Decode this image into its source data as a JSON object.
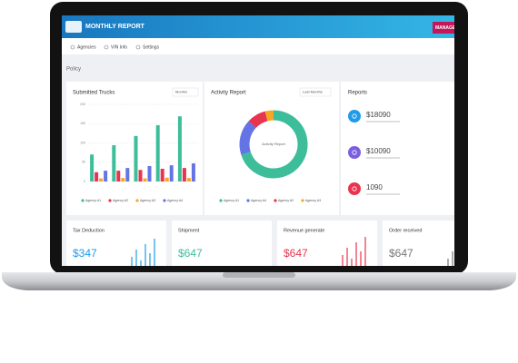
{
  "header": {
    "title": "MONTHLY REPORT",
    "button": "MANAGER"
  },
  "nav": [
    "Agencies",
    "VIN Info",
    "Settings"
  ],
  "breadcrumb": "Policy",
  "chart_data": [
    {
      "type": "bar",
      "title": "Submitted Trucks",
      "dropdown": "Months",
      "categories": [
        null,
        null,
        null,
        null,
        null
      ],
      "ylim": [
        0,
        200
      ],
      "yticks": [
        0,
        50,
        100,
        150,
        200
      ],
      "grid": true,
      "series": [
        {
          "name": "Agency A1",
          "color": "#3dbd9a",
          "values": [
            70,
            94,
            118,
            146,
            169
          ]
        },
        {
          "name": "Agency A2",
          "color": "#e8344e",
          "values": [
            24,
            28,
            30,
            33,
            35
          ]
        },
        {
          "name": "Agency A3",
          "color": "#f5a623",
          "values": [
            8,
            9,
            8,
            10,
            9
          ]
        },
        {
          "name": "Agency A4",
          "color": "#6474e5",
          "values": [
            28,
            35,
            40,
            42,
            47
          ]
        }
      ]
    },
    {
      "type": "pie",
      "title": "Activity Report",
      "dropdown": "Last Months",
      "center_label": "Activity Report",
      "categories": [
        "Agency A1",
        "Agency A4",
        "Agency A2",
        "Agency A3"
      ],
      "colors": [
        "#3dbd9a",
        "#6474e5",
        "#e8344e",
        "#f5a623"
      ],
      "values": [
        70,
        17,
        9,
        4
      ]
    }
  ],
  "reports": {
    "title": "Reports",
    "items": [
      {
        "value": "$18090",
        "color": "#1e9be9"
      },
      {
        "value": "$10090",
        "color": "#7b5fe0"
      },
      {
        "value": "1090",
        "color": "#e8344e"
      }
    ]
  },
  "cards": [
    {
      "title": "Tax Deduction",
      "value": "$347",
      "color": "#1e9be9",
      "bars": [
        10,
        18,
        6,
        24,
        14,
        30
      ]
    },
    {
      "title": "Shipment",
      "value": "$647",
      "color": "#3dbd9a",
      "bars": []
    },
    {
      "title": "Revenue generate",
      "value": "$647",
      "color": "#e8344e",
      "bars": [
        12,
        20,
        8,
        26,
        16,
        32
      ]
    },
    {
      "title": "Order received",
      "value": "$647",
      "color": "#777777",
      "bars": [
        8,
        16,
        22,
        10,
        28,
        18
      ]
    }
  ]
}
